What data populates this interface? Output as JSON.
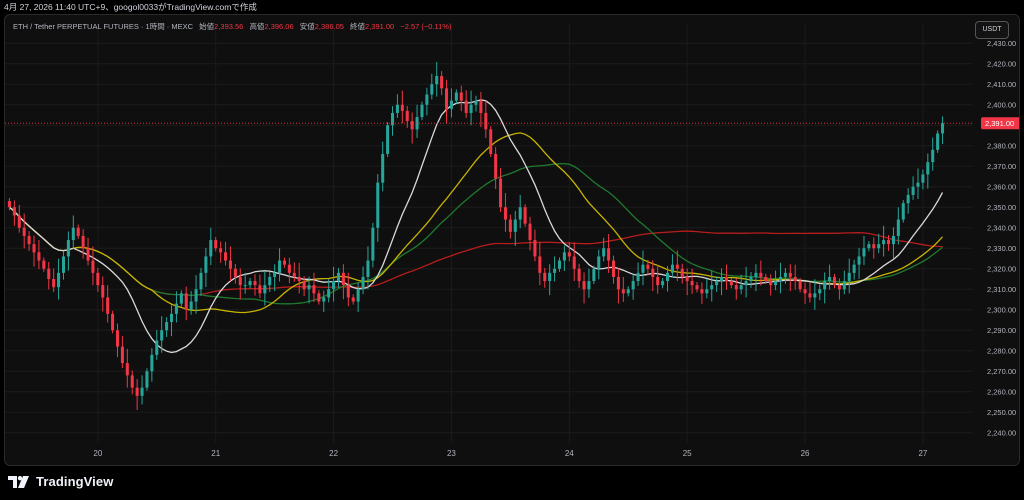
{
  "header": {
    "caption": "4月 27, 2026 11:40 UTC+9、googol0033がTradingView.comで作成"
  },
  "legend": {
    "symbol": "ETH / Tether PERPETUAL FUTURES · 1時間 · MEXC",
    "open_label": "始値",
    "open_value": "2,393.56",
    "high_label": "高値",
    "high_value": "2,396.06",
    "low_label": "安値",
    "low_value": "2,386.05",
    "close_label": "終値",
    "close_value": "2,391.00",
    "change": "−2.57 (−0.11%)"
  },
  "currency_button": "USDT",
  "price_tag": "2,391.00",
  "footer": {
    "brand": "TradingView"
  },
  "colors": {
    "up": "#26a69a",
    "down": "#f23645",
    "ma_fast": "#d9d9d9",
    "ma_mid": "#1f7a2e",
    "ma_mid2": "#c8b400",
    "ma_slow": "#b71c1c",
    "background": "#0f0f0f"
  },
  "chart_data": {
    "type": "candlestick",
    "ylim": [
      2235,
      2435
    ],
    "y_ticks": [
      "2,240.00",
      "2,250.00",
      "2,260.00",
      "2,270.00",
      "2,280.00",
      "2,290.00",
      "2,300.00",
      "2,310.00",
      "2,320.00",
      "2,330.00",
      "2,340.00",
      "2,350.00",
      "2,360.00",
      "2,370.00",
      "2,380.00",
      "2,390.00",
      "2,400.00",
      "2,410.00",
      "2,420.00",
      "2,430.00"
    ],
    "x_ticks": [
      {
        "label": "20",
        "i": 18
      },
      {
        "label": "21",
        "i": 42
      },
      {
        "label": "22",
        "i": 66
      },
      {
        "label": "23",
        "i": 90
      },
      {
        "label": "24",
        "i": 114
      },
      {
        "label": "25",
        "i": 138
      },
      {
        "label": "26",
        "i": 162
      },
      {
        "label": "27",
        "i": 186
      }
    ],
    "last_price": 2391.0,
    "closes": [
      2350,
      2346,
      2340,
      2336,
      2332,
      2328,
      2324,
      2320,
      2315,
      2311,
      2318,
      2326,
      2334,
      2340,
      2336,
      2330,
      2324,
      2318,
      2312,
      2306,
      2298,
      2290,
      2282,
      2274,
      2268,
      2262,
      2258,
      2262,
      2270,
      2278,
      2285,
      2290,
      2294,
      2298,
      2303,
      2308,
      2300,
      2304,
      2310,
      2318,
      2326,
      2334,
      2330,
      2328,
      2324,
      2320,
      2316,
      2312,
      2312,
      2314,
      2312,
      2308,
      2312,
      2316,
      2318,
      2324,
      2322,
      2318,
      2316,
      2314,
      2310,
      2312,
      2308,
      2304,
      2306,
      2310,
      2314,
      2318,
      2312,
      2306,
      2304,
      2310,
      2316,
      2324,
      2340,
      2362,
      2376,
      2390,
      2396,
      2400,
      2397,
      2392,
      2388,
      2394,
      2400,
      2405,
      2410,
      2414,
      2408,
      2398,
      2402,
      2406,
      2402,
      2396,
      2400,
      2402,
      2396,
      2388,
      2376,
      2364,
      2350,
      2344,
      2338,
      2344,
      2350,
      2342,
      2334,
      2326,
      2318,
      2314,
      2318,
      2320,
      2324,
      2328,
      2326,
      2320,
      2314,
      2310,
      2314,
      2320,
      2326,
      2330,
      2324,
      2316,
      2310,
      2308,
      2310,
      2314,
      2318,
      2322,
      2320,
      2316,
      2312,
      2314,
      2318,
      2322,
      2320,
      2316,
      2314,
      2312,
      2310,
      2308,
      2310,
      2312,
      2314,
      2316,
      2314,
      2312,
      2310,
      2312,
      2314,
      2316,
      2318,
      2316,
      2314,
      2312,
      2314,
      2316,
      2318,
      2316,
      2314,
      2310,
      2308,
      2306,
      2308,
      2310,
      2314,
      2316,
      2312,
      2310,
      2314,
      2318,
      2322,
      2326,
      2330,
      2332,
      2330,
      2332,
      2334,
      2332,
      2336,
      2344,
      2352,
      2356,
      2360,
      2362,
      2366,
      2372,
      2378,
      2386,
      2391
    ]
  }
}
